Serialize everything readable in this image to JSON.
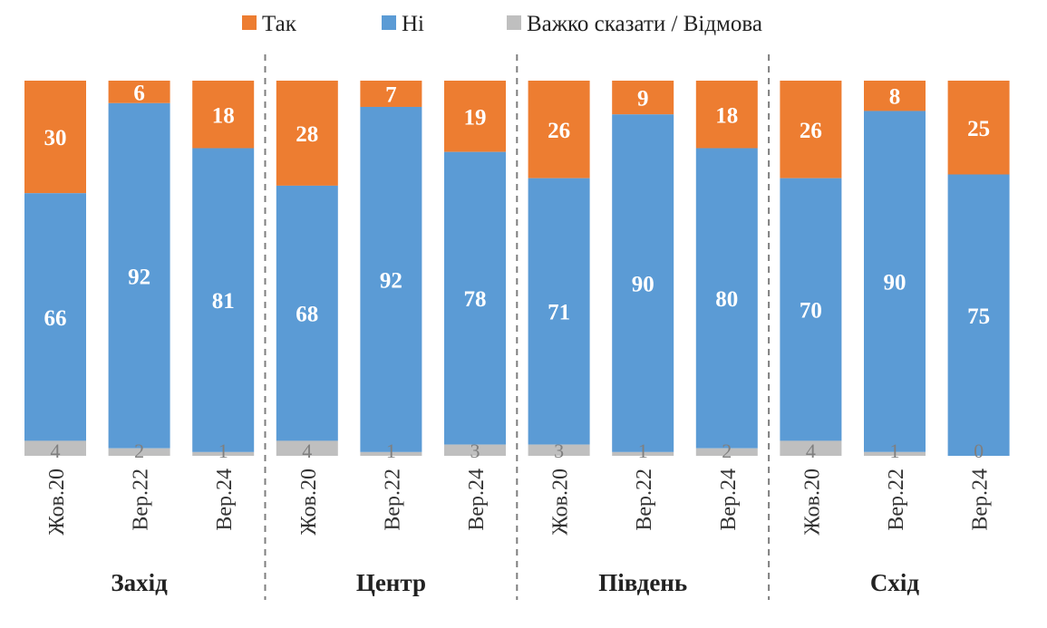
{
  "chart_data": {
    "type": "bar",
    "stacked": true,
    "normalized_percent": true,
    "legend_position": "top",
    "legend": [
      "Так",
      "Ні",
      "Важко сказати / Відмова"
    ],
    "colors": {
      "Так": "#ed7d31",
      "Ні": "#5b9bd5",
      "Важко сказати / Відмова": "#bfbfbf"
    },
    "groups": [
      {
        "name": "Захід",
        "categories": [
          "Жов.20",
          "Вер.22",
          "Вер.24"
        ],
        "series": [
          {
            "name": "Так",
            "values": [
              30,
              6,
              18
            ]
          },
          {
            "name": "Ні",
            "values": [
              66,
              92,
              81
            ]
          },
          {
            "name": "Важко сказати / Відмова",
            "values": [
              4,
              2,
              1
            ]
          }
        ]
      },
      {
        "name": "Центр",
        "categories": [
          "Жов.20",
          "Вер.22",
          "Вер.24"
        ],
        "series": [
          {
            "name": "Так",
            "values": [
              28,
              7,
              19
            ]
          },
          {
            "name": "Ні",
            "values": [
              68,
              92,
              78
            ]
          },
          {
            "name": "Важко сказати / Відмова",
            "values": [
              4,
              1,
              3
            ]
          }
        ]
      },
      {
        "name": "Південь",
        "categories": [
          "Жов.20",
          "Вер.22",
          "Вер.24"
        ],
        "series": [
          {
            "name": "Так",
            "values": [
              26,
              9,
              18
            ]
          },
          {
            "name": "Ні",
            "values": [
              71,
              90,
              80
            ]
          },
          {
            "name": "Важко сказати / Відмова",
            "values": [
              3,
              1,
              2
            ]
          }
        ]
      },
      {
        "name": "Схід",
        "categories": [
          "Жов.20",
          "Вер.22",
          "Вер.24"
        ],
        "series": [
          {
            "name": "Так",
            "values": [
              26,
              8,
              25
            ]
          },
          {
            "name": "Ні",
            "values": [
              70,
              90,
              75
            ]
          },
          {
            "name": "Важко сказати / Відмова",
            "values": [
              4,
              1,
              0
            ]
          }
        ]
      }
    ]
  }
}
